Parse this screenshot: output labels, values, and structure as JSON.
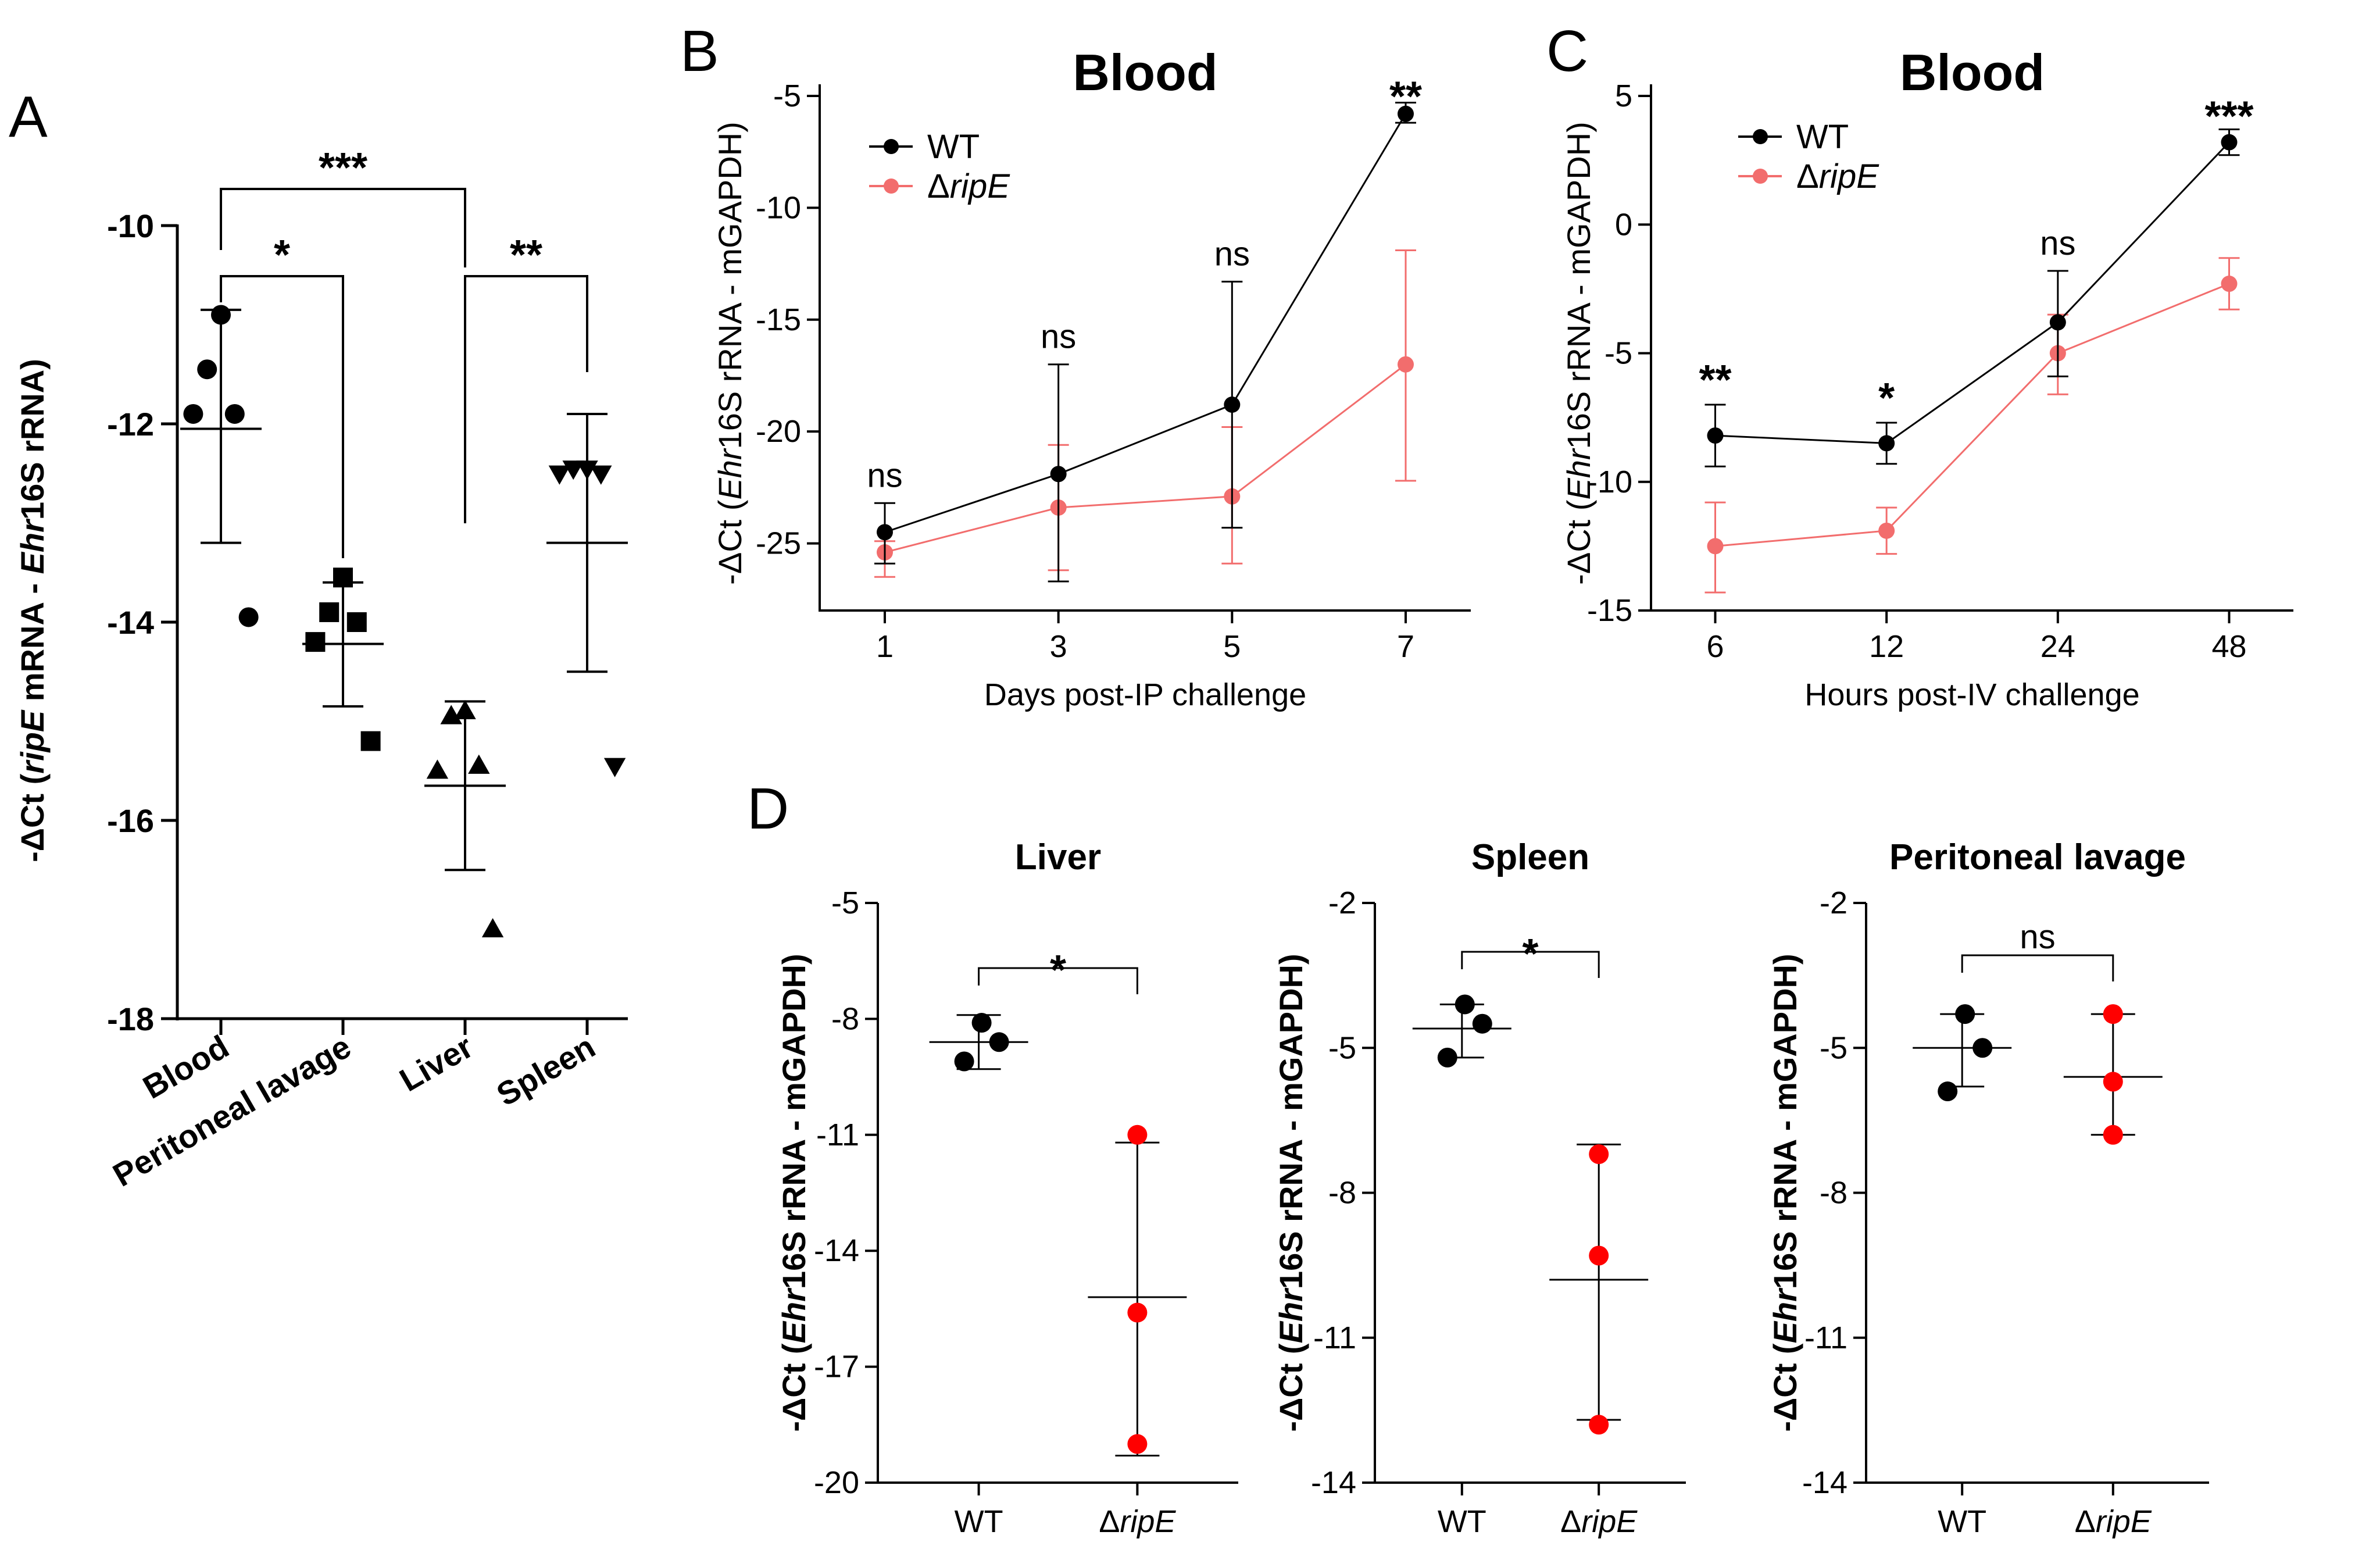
{
  "colors": {
    "wt": "#000000",
    "ripE": "#f26d6d",
    "ripE_dot": "#ff0000",
    "axis": "#000000"
  },
  "chart_data": [
    {
      "id": "A",
      "type": "scatter",
      "panel_label": "A",
      "ylabel_parts": [
        "-ΔCt (",
        "ripE",
        " mRNA - ",
        "Ehr",
        "16S rRNA)"
      ],
      "ylim": [
        -18,
        -10
      ],
      "yticks": [
        -10,
        -12,
        -14,
        -16,
        -18
      ],
      "categories": [
        "Blood",
        "Peritoneal lavage",
        "Liver",
        "Spleen"
      ],
      "groups": [
        {
          "name": "Blood",
          "marker": "circle",
          "points": [
            -10.9,
            -11.45,
            -11.9,
            -11.9,
            -13.95
          ],
          "mean": -12.05,
          "sd_low": -13.2,
          "sd_high": -10.85
        },
        {
          "name": "Peritoneal lavage",
          "marker": "square",
          "points": [
            -13.55,
            -13.9,
            -14.0,
            -14.2,
            -15.2
          ],
          "mean": -14.22,
          "sd_low": -14.85,
          "sd_high": -13.6
        },
        {
          "name": "Liver",
          "marker": "triangle-up",
          "points": [
            -14.9,
            -14.95,
            -15.45,
            -15.5,
            -17.1
          ],
          "mean": -15.65,
          "sd_low": -16.5,
          "sd_high": -14.8
        },
        {
          "name": "Spleen",
          "marker": "triangle-down",
          "points": [
            -12.45,
            -12.45,
            -12.5,
            -12.5,
            -15.45
          ],
          "mean": -13.2,
          "sd_low": -14.5,
          "sd_high": -11.9
        }
      ],
      "brackets": [
        {
          "from": "Blood",
          "to": "Liver",
          "label": "***"
        },
        {
          "from": "Blood",
          "to": "Peritoneal lavage",
          "label": "*"
        },
        {
          "from": "Liver",
          "to": "Spleen",
          "label": "**"
        }
      ]
    },
    {
      "id": "B",
      "type": "line",
      "panel_label": "B",
      "title": "Blood",
      "ylabel_parts": [
        "-ΔCt (",
        "Ehr",
        "16S rRNA - mGAPDH)"
      ],
      "xlabel": "Days post-IP challenge",
      "x": [
        "1",
        "3",
        "5",
        "7"
      ],
      "ylim": [
        -28,
        -5
      ],
      "yticks": [
        -5,
        -10,
        -15,
        -20,
        -25
      ],
      "series": [
        {
          "name": "WT",
          "values": [
            -24.5,
            -21.9,
            -18.8,
            -5.8
          ],
          "err_low": [
            -25.9,
            -26.7,
            -24.3,
            -6.2
          ],
          "err_high": [
            -23.2,
            -17.0,
            -13.3,
            -5.3
          ]
        },
        {
          "name": "ΔripE",
          "values": [
            -25.4,
            -23.4,
            -22.9,
            -17.0
          ],
          "err_low": [
            -26.5,
            -26.2,
            -25.9,
            -22.2
          ],
          "err_high": [
            -24.9,
            -20.6,
            -19.8,
            -11.9
          ]
        }
      ],
      "annotations": [
        "ns",
        "ns",
        "ns",
        "**"
      ],
      "legend": [
        "WT",
        "Δ",
        "ripE"
      ]
    },
    {
      "id": "C",
      "type": "line",
      "panel_label": "C",
      "title": "Blood",
      "ylabel_parts": [
        "-ΔCt (",
        "Ehr",
        "16S rRNA - mGAPDH)"
      ],
      "xlabel": "Hours post-IV challenge",
      "x": [
        "6",
        "12",
        "24",
        "48"
      ],
      "ylim": [
        -15,
        5
      ],
      "yticks": [
        5,
        0,
        -5,
        -10,
        -15
      ],
      "series": [
        {
          "name": "WT",
          "values": [
            -8.2,
            -8.5,
            -3.8,
            3.2
          ],
          "err_low": [
            -9.4,
            -9.3,
            -5.9,
            2.7
          ],
          "err_high": [
            -7.0,
            -7.7,
            -1.8,
            3.7
          ]
        },
        {
          "name": "ΔripE",
          "values": [
            -12.5,
            -11.9,
            -5.0,
            -2.3
          ],
          "err_low": [
            -14.3,
            -12.8,
            -6.6,
            -3.3
          ],
          "err_high": [
            -10.8,
            -11.0,
            -3.5,
            -1.3
          ]
        }
      ],
      "annotations": [
        "**",
        "*",
        "ns",
        "***"
      ],
      "legend": [
        "WT",
        "Δ",
        "ripE"
      ]
    },
    {
      "id": "D1",
      "type": "scatter",
      "panel_label": "D",
      "title": "Liver",
      "ylabel_parts": [
        "-ΔCt (",
        "Ehr",
        "16S rRNA - mGAPDH)"
      ],
      "ylim": [
        -20,
        -5
      ],
      "yticks": [
        -5,
        -8,
        -11,
        -14,
        -17,
        -20
      ],
      "categories": [
        "WT",
        "Δ",
        "ripE"
      ],
      "groups": [
        {
          "name": "WT",
          "points": [
            -8.1,
            -8.6,
            -9.1
          ],
          "mean": -8.6,
          "sd_low": -9.3,
          "sd_high": -7.9
        },
        {
          "name": "ΔripE",
          "points": [
            -11.0,
            -15.6,
            -19.0
          ],
          "mean": -15.2,
          "sd_low": -19.3,
          "sd_high": -11.2
        }
      ],
      "significance": "*"
    },
    {
      "id": "D2",
      "type": "scatter",
      "title": "Spleen",
      "ylabel_parts": [
        "-ΔCt (",
        "Ehr",
        "16S rRNA - mGAPDH)"
      ],
      "ylim": [
        -14,
        -2
      ],
      "yticks": [
        -2,
        -5,
        -8,
        -11,
        -14
      ],
      "categories": [
        "WT",
        "Δ",
        "ripE"
      ],
      "groups": [
        {
          "name": "WT",
          "points": [
            -4.1,
            -4.5,
            -5.2
          ],
          "mean": -4.6,
          "sd_low": -5.2,
          "sd_high": -4.1
        },
        {
          "name": "ΔripE",
          "points": [
            -7.2,
            -9.3,
            -12.8
          ],
          "mean": -9.8,
          "sd_low": -12.7,
          "sd_high": -7.0
        }
      ],
      "significance": "*"
    },
    {
      "id": "D3",
      "type": "scatter",
      "title": "Peritoneal lavage",
      "ylabel_parts": [
        "-ΔCt (",
        "Ehr",
        "16S rRNA - mGAPDH)"
      ],
      "ylim": [
        -14,
        -2
      ],
      "yticks": [
        -2,
        -5,
        -8,
        -11,
        -14
      ],
      "categories": [
        "WT",
        "Δ",
        "ripE"
      ],
      "groups": [
        {
          "name": "WT",
          "points": [
            -4.3,
            -5.0,
            -5.9
          ],
          "mean": -5.0,
          "sd_low": -5.8,
          "sd_high": -4.3
        },
        {
          "name": "ΔripE",
          "points": [
            -4.3,
            -5.7,
            -6.8
          ],
          "mean": -5.6,
          "sd_low": -6.8,
          "sd_high": -4.3
        }
      ],
      "significance": "ns"
    }
  ]
}
